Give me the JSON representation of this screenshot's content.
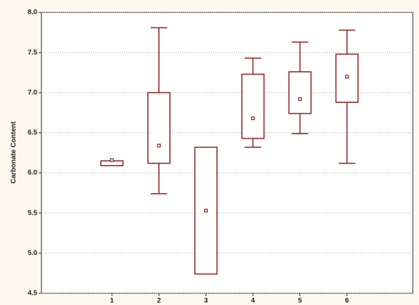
{
  "chart_data": {
    "type": "box",
    "y_label": "Carbonate Content",
    "x": [
      1,
      2,
      3,
      4,
      5,
      6
    ],
    "box_low": [
      6.09,
      6.12,
      4.74,
      6.43,
      6.74,
      6.88
    ],
    "box_high": [
      6.15,
      7.0,
      6.32,
      7.23,
      7.26,
      7.48
    ],
    "center": [
      6.16,
      6.34,
      5.53,
      6.68,
      6.92,
      7.2
    ],
    "whisker_low": [
      null,
      5.74,
      null,
      6.32,
      6.49,
      6.12
    ],
    "whisker_high": [
      null,
      7.81,
      null,
      7.43,
      7.63,
      7.78
    ],
    "color": "#8b1a1a",
    "xlim": [
      -0.5,
      7.4
    ],
    "xticks": [
      1,
      2,
      3,
      4,
      5,
      6
    ],
    "ylim": [
      4.5,
      8
    ],
    "yticks": [
      {
        "value": 4.5,
        "label": "4.5"
      },
      {
        "value": 5,
        "label": "5.0"
      },
      5.5,
      {
        "value": 6,
        "label": "6.0"
      },
      6.5,
      {
        "value": 7,
        "label": "7.0"
      },
      7.5,
      {
        "value": 8,
        "label": "8.0"
      }
    ],
    "grid": true
  }
}
